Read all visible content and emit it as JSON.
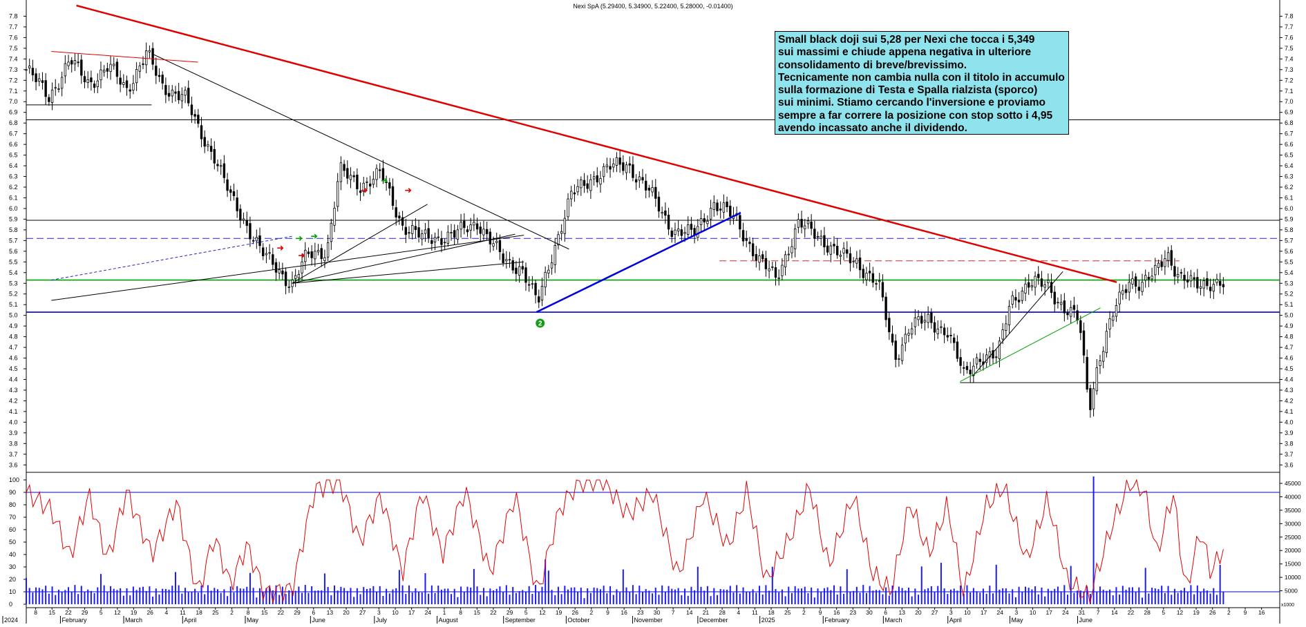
{
  "chart_data": {
    "type": "candlestick",
    "title": "Nexi SpA (5.29400, 5.34900, 5.22400, 5.28000, -0.01400)",
    "price_axis": {
      "ylim": [
        3.55,
        7.9
      ],
      "tick_labels": [
        "3.6",
        "3.7",
        "3.8",
        "3.9",
        "4.0",
        "4.1",
        "4.2",
        "4.3",
        "4.4",
        "4.5",
        "4.6",
        "4.7",
        "4.8",
        "4.9",
        "5.0",
        "5.1",
        "5.2",
        "5.3",
        "5.4",
        "5.5",
        "5.6",
        "5.7",
        "5.8",
        "5.9",
        "6.0",
        "6.1",
        "6.2",
        "6.3",
        "6.4",
        "6.5",
        "6.6",
        "6.7",
        "6.8",
        "6.9",
        "7.0",
        "7.1",
        "7.2",
        "7.3",
        "7.4",
        "7.5",
        "7.6",
        "7.7",
        "7.8"
      ]
    },
    "oscillator_axis": {
      "ylim": [
        0,
        100
      ],
      "tick_labels": [
        "0",
        "10",
        "20",
        "30",
        "40",
        "50",
        "60",
        "70",
        "80",
        "90",
        "100"
      ],
      "levels": [
        10,
        90
      ]
    },
    "volume_axis": {
      "tick_labels": [
        "5000",
        "10000",
        "15000",
        "20000",
        "25000",
        "30000",
        "35000",
        "40000",
        "45000"
      ],
      "unit_label": "x1000"
    },
    "x_axis": {
      "tick_labels": [
        "8",
        "15",
        "22",
        "29",
        "5",
        "12",
        "19",
        "26",
        "4",
        "11",
        "18",
        "25",
        "2",
        "8",
        "15",
        "22",
        "29",
        "6",
        "13",
        "20",
        "27",
        "3",
        "10",
        "17",
        "24",
        "1",
        "8",
        "15",
        "22",
        "29",
        "5",
        "12",
        "19",
        "26",
        "2",
        "9",
        "16",
        "23",
        "30",
        "7",
        "14",
        "21",
        "28",
        "4",
        "11",
        "18",
        "25",
        "2",
        "9",
        "16",
        "23",
        "30",
        "6",
        "13",
        "20",
        "27",
        "3",
        "10",
        "17",
        "24",
        "3",
        "10",
        "17",
        "24",
        "31",
        "7",
        "14",
        "22",
        "28",
        "5",
        "12",
        "19",
        "26",
        "2",
        "9",
        "16"
      ],
      "month_labels": [
        "2024",
        "February",
        "March",
        "April",
        "May",
        "June",
        "July",
        "August",
        "September",
        "October",
        "November",
        "December",
        "2025",
        "February",
        "March",
        "April",
        "May",
        "June"
      ]
    },
    "horizontal_levels": [
      {
        "value": 6.83,
        "color": "#000000",
        "style": "solid"
      },
      {
        "value": 5.89,
        "color": "#000000",
        "style": "solid"
      },
      {
        "value": 5.72,
        "color": "#2222cc",
        "style": "dashed"
      },
      {
        "value": 5.33,
        "color": "#00a000",
        "style": "solid"
      },
      {
        "value": 5.03,
        "color": "#0000cc",
        "style": "solid"
      },
      {
        "value": 5.51,
        "color": "#dd2222",
        "style": "dashed"
      },
      {
        "value": 4.37,
        "color": "#000000",
        "style": "solid"
      },
      {
        "value": 6.97,
        "color": "#000000",
        "style": "solid"
      }
    ],
    "trendlines": [
      {
        "color": "#e00000",
        "width": 2.5,
        "from": [
          0.04,
          7.9
        ],
        "to": [
          0.87,
          5.31
        ]
      },
      {
        "color": "#0000dd",
        "width": 2.5,
        "from": [
          0.407,
          5.03
        ],
        "to": [
          0.57,
          5.96
        ]
      },
      {
        "color": "#000000",
        "width": 1,
        "from": [
          0.1,
          7.45
        ],
        "to": [
          0.433,
          5.62
        ]
      },
      {
        "color": "#e00000",
        "width": 1,
        "from": [
          0.02,
          7.47
        ],
        "to": [
          0.137,
          7.37
        ]
      },
      {
        "color": "#000000",
        "width": 1,
        "from": [
          0.02,
          5.14
        ],
        "to": [
          0.397,
          5.75
        ]
      },
      {
        "color": "#000000",
        "width": 1,
        "from": [
          0.212,
          5.3
        ],
        "to": [
          0.32,
          6.04
        ]
      },
      {
        "color": "#000000",
        "width": 1,
        "from": [
          0.212,
          5.3
        ],
        "to": [
          0.39,
          5.76
        ]
      },
      {
        "color": "#000000",
        "width": 1,
        "from": [
          0.212,
          5.3
        ],
        "to": [
          0.397,
          5.5
        ]
      },
      {
        "color": "#2222cc",
        "width": 1,
        "dashed": true,
        "from": [
          0.02,
          5.33
        ],
        "to": [
          0.212,
          5.74
        ]
      },
      {
        "color": "#000000",
        "width": 1,
        "from": [
          0.755,
          4.43
        ],
        "to": [
          0.827,
          5.41
        ]
      },
      {
        "color": "#00a000",
        "width": 1,
        "from": [
          0.745,
          4.38
        ],
        "to": [
          0.857,
          5.07
        ]
      }
    ],
    "annotation_marker": {
      "label": "2",
      "color": "#1a9a1a"
    },
    "note_lines": [
      "Small black doji sui 5,28 per Nexi che tocca i 5,349",
      "sui massimi e chiude appena negativa in ulteriore",
      "consolidamento di breve/brevissimo.",
      "Tecnicamente non cambia nulla con il titolo in accumulo",
      "sulla formazione di Testa e Spalla rialzista (sporco)",
      "sui minimi. Stiamo cercando l'inversione e proviamo",
      "sempre a far correre la posizione con stop sotto i 4,95",
      "avendo incassato anche il dividendo."
    ],
    "price_path": [
      [
        0,
        7.3
      ],
      [
        0.018,
        7.05
      ],
      [
        0.035,
        7.38
      ],
      [
        0.05,
        7.18
      ],
      [
        0.066,
        7.32
      ],
      [
        0.08,
        7.12
      ],
      [
        0.096,
        7.45
      ],
      [
        0.108,
        7.15
      ],
      [
        0.126,
        7.05
      ],
      [
        0.137,
        6.75
      ],
      [
        0.15,
        6.5
      ],
      [
        0.163,
        6.1
      ],
      [
        0.176,
        5.85
      ],
      [
        0.19,
        5.55
      ],
      [
        0.212,
        5.3
      ],
      [
        0.224,
        5.55
      ],
      [
        0.24,
        5.62
      ],
      [
        0.25,
        6.35
      ],
      [
        0.266,
        6.22
      ],
      [
        0.283,
        6.32
      ],
      [
        0.3,
        5.85
      ],
      [
        0.316,
        5.72
      ],
      [
        0.342,
        5.75
      ],
      [
        0.36,
        5.88
      ],
      [
        0.38,
        5.52
      ],
      [
        0.395,
        5.45
      ],
      [
        0.408,
        5.1
      ],
      [
        0.42,
        5.6
      ],
      [
        0.435,
        6.12
      ],
      [
        0.45,
        6.28
      ],
      [
        0.466,
        6.38
      ],
      [
        0.48,
        6.42
      ],
      [
        0.5,
        6.1
      ],
      [
        0.516,
        5.8
      ],
      [
        0.532,
        5.75
      ],
      [
        0.548,
        6.05
      ],
      [
        0.566,
        5.9
      ],
      [
        0.585,
        5.5
      ],
      [
        0.598,
        5.35
      ],
      [
        0.616,
        5.85
      ],
      [
        0.632,
        5.75
      ],
      [
        0.65,
        5.55
      ],
      [
        0.663,
        5.5
      ],
      [
        0.68,
        5.28
      ],
      [
        0.693,
        4.6
      ],
      [
        0.705,
        4.9
      ],
      [
        0.72,
        4.95
      ],
      [
        0.735,
        4.85
      ],
      [
        0.748,
        4.43
      ],
      [
        0.76,
        4.62
      ],
      [
        0.775,
        4.6
      ],
      [
        0.785,
        5.15
      ],
      [
        0.8,
        5.28
      ],
      [
        0.815,
        5.3
      ],
      [
        0.828,
        5.05
      ],
      [
        0.84,
        4.95
      ],
      [
        0.848,
        4.15
      ],
      [
        0.855,
        4.55
      ],
      [
        0.87,
        5.1
      ],
      [
        0.88,
        5.35
      ],
      [
        0.89,
        5.28
      ],
      [
        0.9,
        5.38
      ],
      [
        0.91,
        5.6
      ],
      [
        0.92,
        5.35
      ],
      [
        0.932,
        5.28
      ],
      [
        0.945,
        5.32
      ],
      [
        0.955,
        5.28
      ]
    ],
    "oscillator_path": [
      [
        0,
        90
      ],
      [
        0.02,
        76
      ],
      [
        0.035,
        38
      ],
      [
        0.05,
        88
      ],
      [
        0.065,
        35
      ],
      [
        0.08,
        91
      ],
      [
        0.1,
        40
      ],
      [
        0.12,
        82
      ],
      [
        0.137,
        8
      ],
      [
        0.15,
        55
      ],
      [
        0.163,
        15
      ],
      [
        0.176,
        48
      ],
      [
        0.19,
        9
      ],
      [
        0.212,
        12
      ],
      [
        0.23,
        92
      ],
      [
        0.25,
        100
      ],
      [
        0.266,
        50
      ],
      [
        0.283,
        88
      ],
      [
        0.3,
        25
      ],
      [
        0.316,
        92
      ],
      [
        0.332,
        40
      ],
      [
        0.35,
        92
      ],
      [
        0.37,
        25
      ],
      [
        0.39,
        88
      ],
      [
        0.408,
        8
      ],
      [
        0.425,
        75
      ],
      [
        0.44,
        98
      ],
      [
        0.46,
        100
      ],
      [
        0.48,
        72
      ],
      [
        0.5,
        90
      ],
      [
        0.52,
        22
      ],
      [
        0.54,
        88
      ],
      [
        0.56,
        45
      ],
      [
        0.575,
        92
      ],
      [
        0.59,
        18
      ],
      [
        0.61,
        55
      ],
      [
        0.625,
        95
      ],
      [
        0.64,
        30
      ],
      [
        0.66,
        88
      ],
      [
        0.675,
        25
      ],
      [
        0.69,
        10
      ],
      [
        0.705,
        82
      ],
      [
        0.72,
        40
      ],
      [
        0.735,
        80
      ],
      [
        0.748,
        8
      ],
      [
        0.765,
        78
      ],
      [
        0.78,
        95
      ],
      [
        0.798,
        35
      ],
      [
        0.815,
        85
      ],
      [
        0.83,
        20
      ],
      [
        0.848,
        5
      ],
      [
        0.865,
        60
      ],
      [
        0.88,
        98
      ],
      [
        0.892,
        92
      ],
      [
        0.902,
        40
      ],
      [
        0.915,
        90
      ],
      [
        0.925,
        10
      ],
      [
        0.937,
        60
      ],
      [
        0.945,
        25
      ],
      [
        0.955,
        45
      ]
    ]
  }
}
